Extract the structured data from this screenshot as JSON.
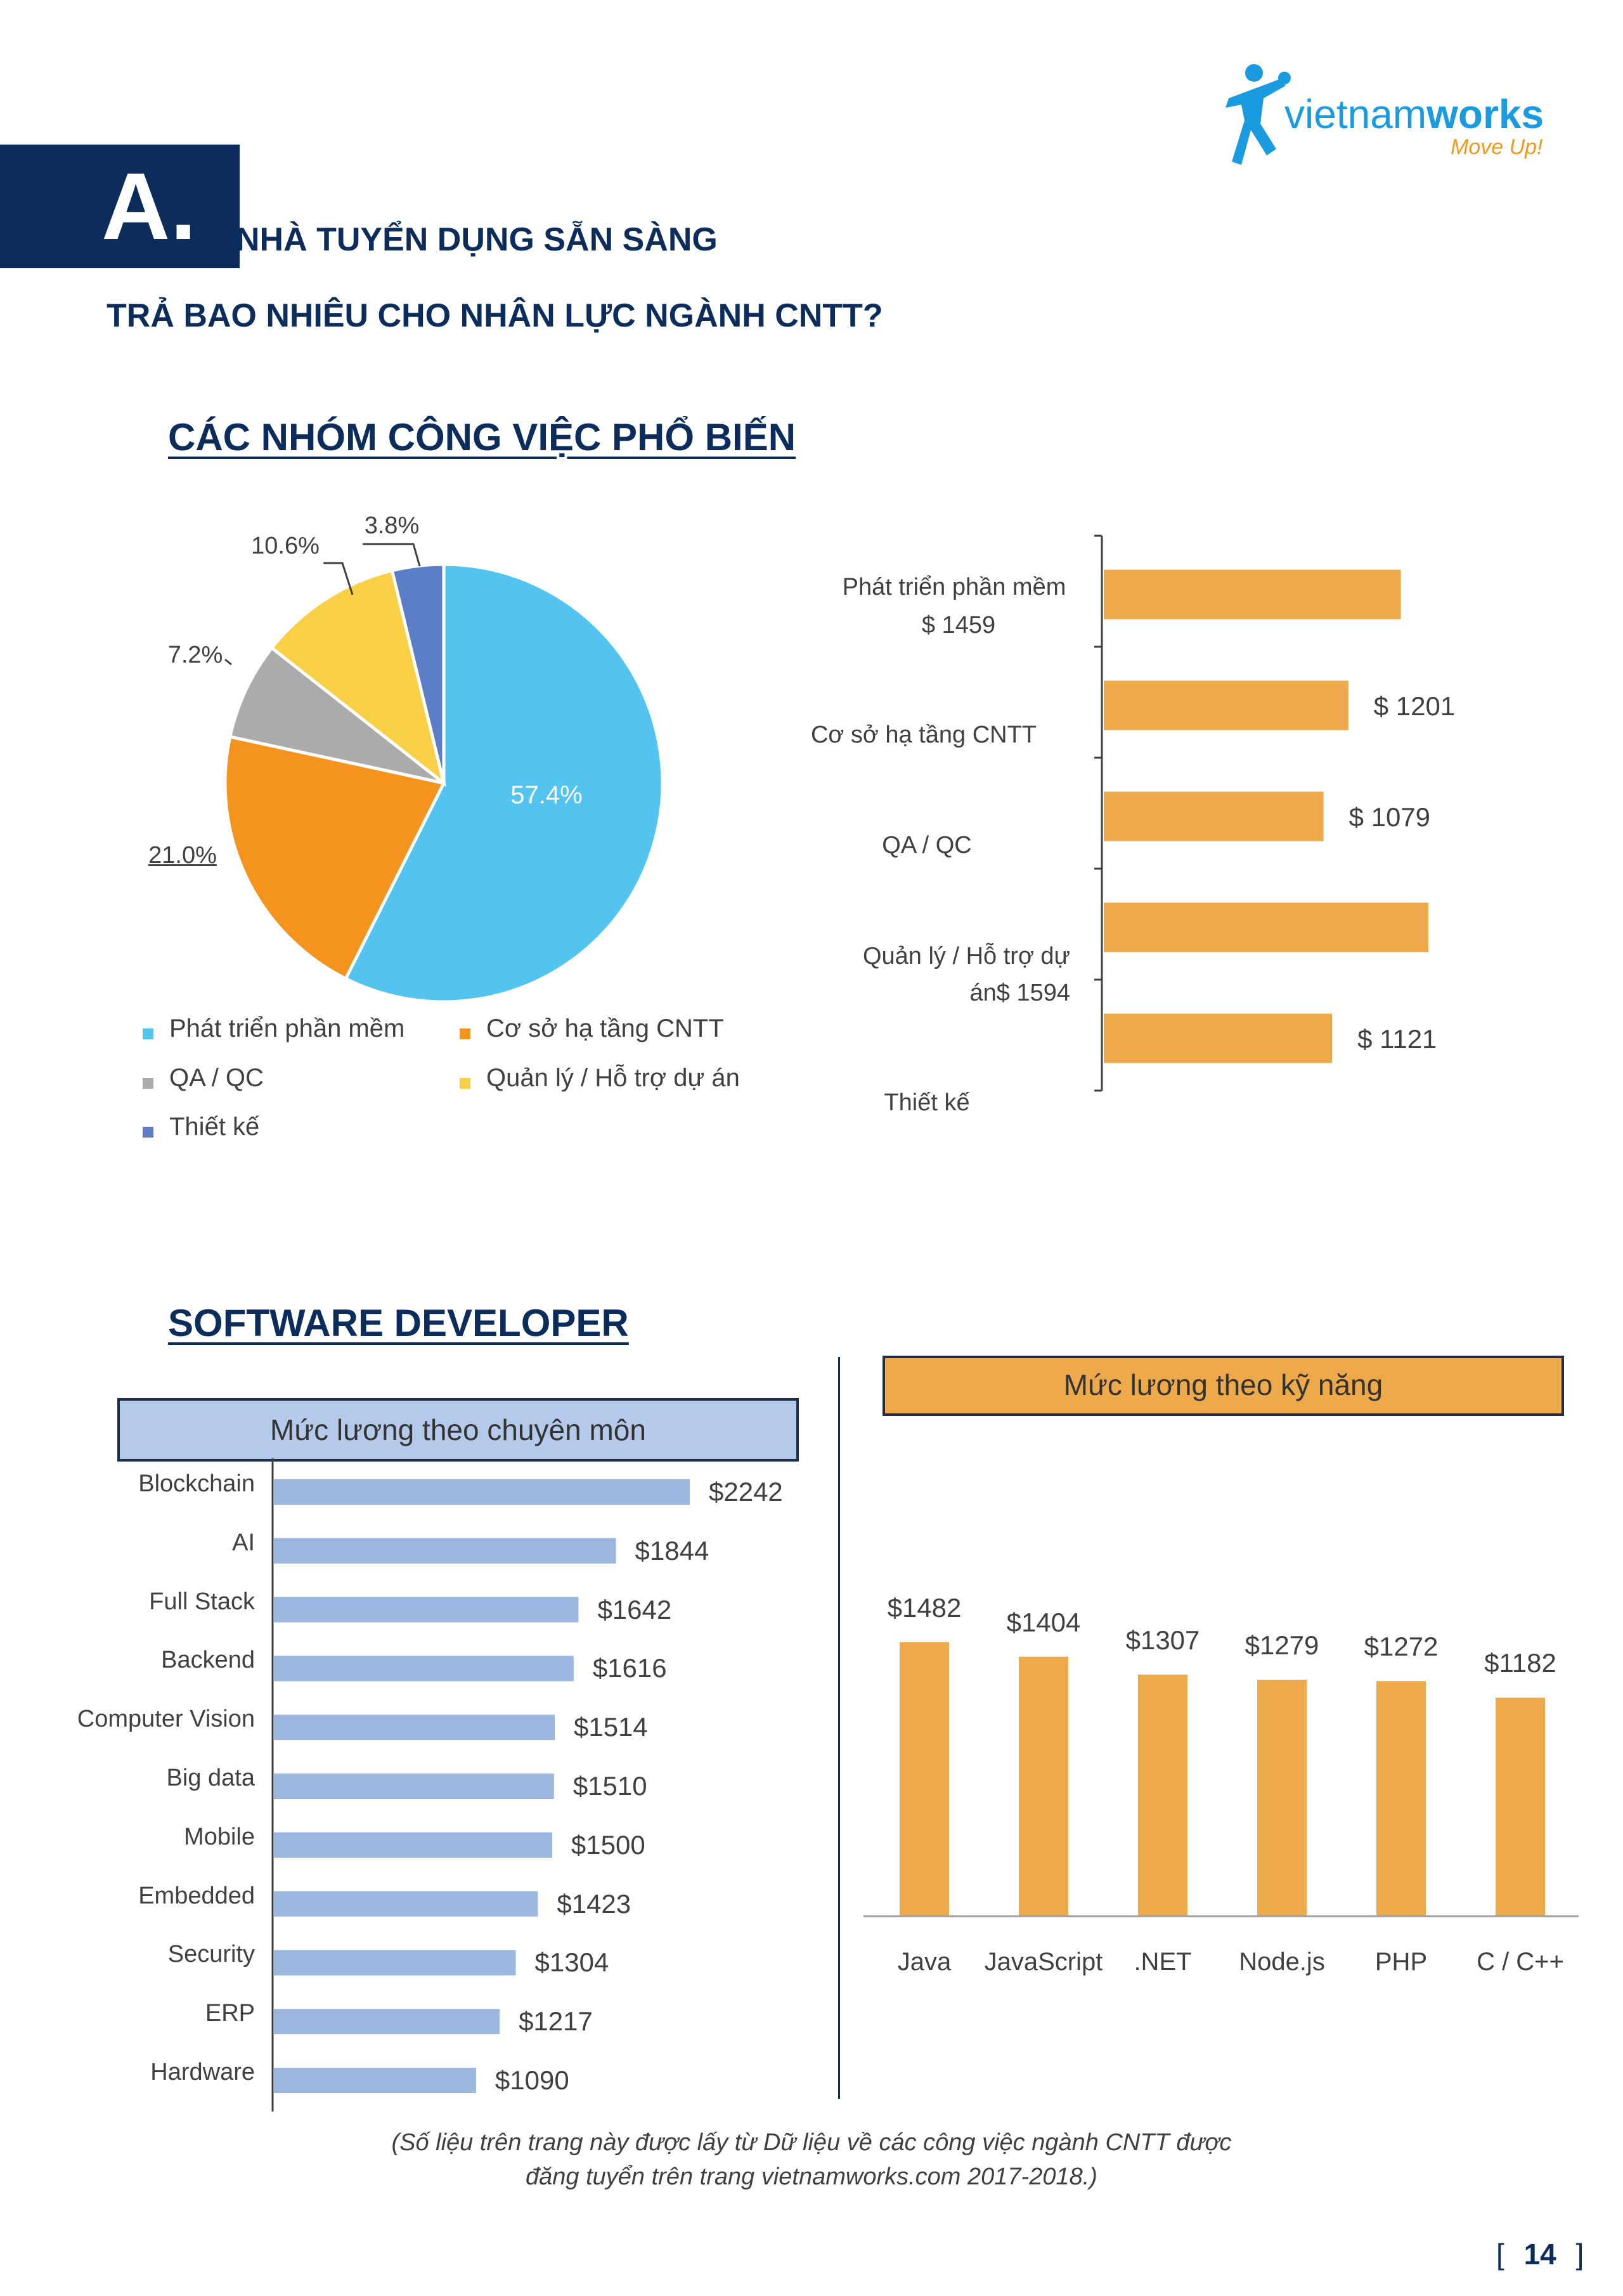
{
  "logo": {
    "brand_light": "vietnam",
    "brand_bold": "works",
    "tagline": "Move Up!"
  },
  "section": {
    "letter": "A.",
    "title_line1": "NHÀ TUYỂN DỤNG SẴN SÀNG",
    "title_line2": "TRẢ BAO NHIÊU CHO NHÂN LỰC NGÀNH CNTT?"
  },
  "popular_groups": {
    "heading": "CÁC NHÓM CÔNG VIỆC PHỔ BIẾN"
  },
  "software_developer": {
    "heading": "SOFTWARE DEVELOPER"
  },
  "footnote": {
    "line1": "(Số liệu trên trang này được lấy từ Dữ liệu về các công việc ngành CNTT được",
    "line2": "đăng tuyển trên trang vietnamworks.com 2017-2018.)"
  },
  "page_number": {
    "left_bracket": "[",
    "number": "14",
    "right_bracket": "]"
  },
  "colors": {
    "navy": "#0c2d5c",
    "orange_bar": "#eda94a",
    "blue_bar": "#9bb7e0",
    "pie_sky": "#52c4ef",
    "pie_orange": "#f5931f",
    "pie_gray": "#ababab",
    "pie_yellow": "#f9cf46",
    "pie_blue": "#5b7ec6"
  },
  "chart_data": [
    {
      "type": "pie",
      "title": "",
      "slices": [
        {
          "label": "Phát triển phần mềm",
          "value": 57.4,
          "value_label": "57.4%",
          "color": "#52c4ef"
        },
        {
          "label": "Cơ sở hạ tầng CNTT",
          "value": 21.0,
          "value_label": "21.0%",
          "color": "#f5931f"
        },
        {
          "label": "QA / QC",
          "value": 7.2,
          "value_label": "7.2%",
          "color": "#ababab"
        },
        {
          "label": "Quản lý / Hỗ trợ dự án",
          "value": 10.6,
          "value_label": "10.6%",
          "color": "#f9cf46"
        },
        {
          "label": "Thiết kế",
          "value": 3.8,
          "value_label": "3.8%",
          "color": "#5b7ec6"
        }
      ],
      "legend": "bottom"
    },
    {
      "type": "bar",
      "orientation": "horizontal",
      "title": "",
      "categories": [
        {
          "name": "Phát triển phần mềm",
          "lines": [
            "Phát triển phần mềm",
            "$ 1459"
          ]
        },
        {
          "name": "Cơ sở hạ tầng CNTT",
          "lines": [
            "Cơ sở hạ tầng CNTT"
          ]
        },
        {
          "name": "QA / QC",
          "lines": [
            "QA / QC"
          ]
        },
        {
          "name": "Quản lý / Hỗ trợ dự án",
          "lines": [
            "Quản lý / Hỗ trợ dự",
            "án$ 1594"
          ]
        },
        {
          "name": "Thiết kế",
          "lines": [
            "Thiết kế"
          ]
        }
      ],
      "values": [
        1459,
        1201,
        1079,
        1594,
        1121
      ],
      "value_labels": [
        "",
        "$ 1201",
        "$ 1079",
        "",
        "$ 1121"
      ],
      "color": "#eda94a"
    },
    {
      "type": "bar",
      "orientation": "horizontal",
      "title": "Mức lương theo chuyên môn",
      "categories": [
        "Blockchain",
        "AI",
        "Full Stack",
        "Backend",
        "Computer Vision",
        "Big data",
        "Mobile",
        "Embedded",
        "Security",
        "ERP",
        "Hardware"
      ],
      "values": [
        2242,
        1844,
        1642,
        1616,
        1514,
        1510,
        1500,
        1423,
        1304,
        1217,
        1090
      ],
      "value_labels": [
        "$2242",
        "$1844",
        "$1642",
        "$1616",
        "$1514",
        "$1510",
        "$1500",
        "$1423",
        "$1304",
        "$1217",
        "$1090"
      ],
      "color": "#9bb7e0"
    },
    {
      "type": "bar",
      "orientation": "vertical",
      "title": "Mức lương theo kỹ năng",
      "categories": [
        "Java",
        "JavaScript",
        ".NET",
        "Node.js",
        "PHP",
        "C / C++"
      ],
      "values": [
        1482,
        1404,
        1307,
        1279,
        1272,
        1182
      ],
      "value_labels": [
        "$1482",
        "$1404",
        "$1307",
        "$1279",
        "$1272",
        "$1182"
      ],
      "color": "#eda94a"
    }
  ]
}
